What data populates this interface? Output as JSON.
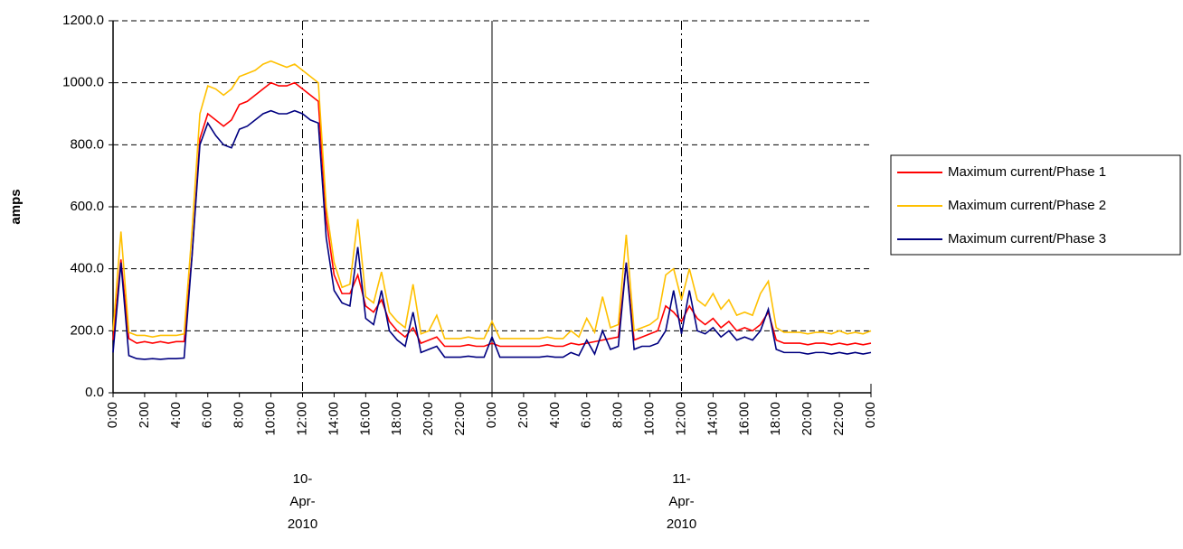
{
  "chart_data": {
    "type": "line",
    "y_label": "amps",
    "x": [
      0,
      0.5,
      1,
      1.5,
      2,
      2.5,
      3,
      3.5,
      4,
      4.5,
      5,
      5.5,
      6,
      6.5,
      7,
      7.5,
      8,
      8.5,
      9,
      9.5,
      10,
      10.5,
      11,
      11.5,
      12,
      12.5,
      13,
      13.5,
      14,
      14.5,
      15,
      15.5,
      16,
      16.5,
      17,
      17.5,
      18,
      18.5,
      19,
      19.5,
      20,
      20.5,
      21,
      21.5,
      22,
      22.5,
      23,
      23.5,
      24,
      24.5,
      25,
      25.5,
      26,
      26.5,
      27,
      27.5,
      28,
      28.5,
      29,
      29.5,
      30,
      30.5,
      31,
      31.5,
      32,
      32.5,
      33,
      33.5,
      34,
      34.5,
      35,
      35.5,
      36,
      36.5,
      37,
      37.5,
      38,
      38.5,
      39,
      39.5,
      40,
      40.5,
      41,
      41.5,
      42,
      42.5,
      43,
      43.5,
      44,
      44.5,
      45,
      45.5,
      46,
      46.5,
      47,
      47.5,
      48
    ],
    "series": [
      {
        "name": "Maximum current/Phase 1",
        "color": "#ff0000",
        "values": [
          170,
          430,
          175,
          160,
          165,
          160,
          165,
          160,
          165,
          165,
          440,
          820,
          900,
          880,
          860,
          880,
          930,
          940,
          960,
          980,
          1000,
          990,
          990,
          1000,
          980,
          960,
          940,
          560,
          380,
          320,
          320,
          380,
          280,
          260,
          300,
          230,
          200,
          180,
          210,
          160,
          170,
          180,
          150,
          150,
          150,
          155,
          150,
          150,
          160,
          150,
          150,
          150,
          150,
          150,
          150,
          155,
          150,
          150,
          160,
          155,
          160,
          165,
          170,
          175,
          180,
          420,
          170,
          180,
          190,
          200,
          280,
          260,
          230,
          280,
          240,
          220,
          240,
          210,
          230,
          200,
          210,
          200,
          220,
          260,
          170,
          160,
          160,
          160,
          155,
          160,
          160,
          155,
          160,
          155,
          160,
          155,
          160
        ]
      },
      {
        "name": "Maximum current/Phase 2",
        "color": "#ffc000",
        "values": [
          200,
          520,
          195,
          185,
          185,
          180,
          185,
          185,
          185,
          190,
          520,
          900,
          990,
          980,
          960,
          980,
          1020,
          1030,
          1040,
          1060,
          1070,
          1060,
          1050,
          1060,
          1040,
          1020,
          1000,
          600,
          420,
          340,
          350,
          560,
          310,
          290,
          390,
          260,
          230,
          210,
          350,
          190,
          200,
          250,
          175,
          175,
          175,
          180,
          175,
          175,
          230,
          175,
          175,
          175,
          175,
          175,
          175,
          180,
          175,
          175,
          200,
          180,
          240,
          195,
          310,
          210,
          220,
          510,
          200,
          210,
          220,
          240,
          380,
          400,
          300,
          400,
          300,
          280,
          320,
          270,
          300,
          250,
          260,
          250,
          320,
          360,
          210,
          195,
          195,
          195,
          190,
          195,
          195,
          190,
          200,
          190,
          195,
          190,
          200
        ]
      },
      {
        "name": "Maximum current/Phase 3",
        "color": "#000080",
        "values": [
          130,
          420,
          120,
          110,
          108,
          110,
          108,
          110,
          110,
          112,
          440,
          800,
          870,
          830,
          800,
          790,
          850,
          860,
          880,
          900,
          910,
          900,
          900,
          910,
          900,
          880,
          870,
          500,
          330,
          290,
          280,
          470,
          240,
          220,
          330,
          200,
          170,
          150,
          260,
          130,
          140,
          150,
          115,
          115,
          115,
          118,
          115,
          115,
          180,
          115,
          115,
          115,
          115,
          115,
          115,
          118,
          115,
          115,
          130,
          120,
          170,
          125,
          200,
          140,
          150,
          420,
          140,
          150,
          150,
          160,
          200,
          330,
          190,
          330,
          200,
          190,
          210,
          180,
          200,
          170,
          180,
          170,
          200,
          270,
          140,
          130,
          130,
          130,
          125,
          130,
          130,
          125,
          130,
          125,
          130,
          125,
          130
        ]
      }
    ],
    "xlim": [
      0,
      48
    ],
    "xticks": [
      {
        "value": 0,
        "label": "0:00"
      },
      {
        "value": 2,
        "label": "2:00"
      },
      {
        "value": 4,
        "label": "4:00"
      },
      {
        "value": 6,
        "label": "6:00"
      },
      {
        "value": 8,
        "label": "8:00"
      },
      {
        "value": 10,
        "label": "10:00"
      },
      {
        "value": 12,
        "label": "12:00"
      },
      {
        "value": 14,
        "label": "14:00"
      },
      {
        "value": 16,
        "label": "16:00"
      },
      {
        "value": 18,
        "label": "18:00"
      },
      {
        "value": 20,
        "label": "20:00"
      },
      {
        "value": 22,
        "label": "22:00"
      },
      {
        "value": 24,
        "label": "0:00"
      },
      {
        "value": 26,
        "label": "2:00"
      },
      {
        "value": 28,
        "label": "4:00"
      },
      {
        "value": 30,
        "label": "6:00"
      },
      {
        "value": 32,
        "label": "8:00"
      },
      {
        "value": 34,
        "label": "10:00"
      },
      {
        "value": 36,
        "label": "12:00"
      },
      {
        "value": 38,
        "label": "14:00"
      },
      {
        "value": 40,
        "label": "16:00"
      },
      {
        "value": 42,
        "label": "18:00"
      },
      {
        "value": 44,
        "label": "20:00"
      },
      {
        "value": 46,
        "label": "22:00"
      },
      {
        "value": 48,
        "label": "0:00"
      }
    ],
    "date_labels": [
      {
        "value": 12,
        "lines": [
          "10-",
          "Apr-",
          "2010"
        ]
      },
      {
        "value": 36,
        "lines": [
          "11-",
          "Apr-",
          "2010"
        ]
      }
    ],
    "vlines": [
      {
        "value": 12,
        "style": "dashed"
      },
      {
        "value": 24,
        "style": "solid"
      },
      {
        "value": 36,
        "style": "dashed"
      }
    ],
    "ylim": [
      0,
      1200
    ],
    "yticks": [
      {
        "value": 0,
        "label": "0.0"
      },
      {
        "value": 200,
        "label": "200.0"
      },
      {
        "value": 400,
        "label": "400.0"
      },
      {
        "value": 600,
        "label": "600.0"
      },
      {
        "value": 800,
        "label": "800.0"
      },
      {
        "value": 1000,
        "label": "1000.0"
      },
      {
        "value": 1200,
        "label": "1200.0"
      }
    ],
    "grid": true,
    "legend": "right"
  }
}
